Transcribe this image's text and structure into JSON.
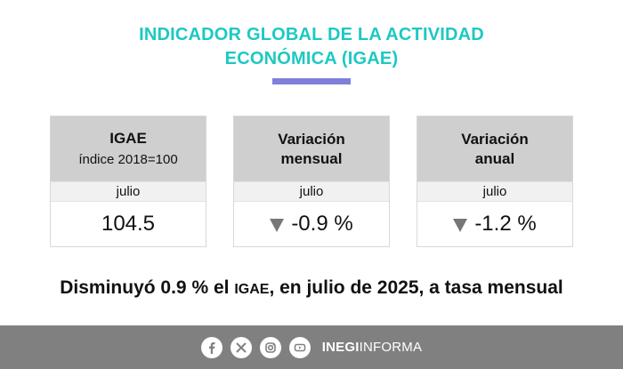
{
  "title": {
    "line1": "INDICADOR GLOBAL DE LA ACTIVIDAD",
    "line2": "ECONÓMICA (IGAE)"
  },
  "cards": [
    {
      "heading": "IGAE",
      "subheading": "índice 2018=100",
      "month": "julio",
      "value": "104.5",
      "trend": "none"
    },
    {
      "heading": "Variación",
      "subheading": "mensual",
      "month": "julio",
      "value": "-0.9 %",
      "trend": "down"
    },
    {
      "heading": "Variación",
      "subheading": "anual",
      "month": "julio",
      "value": "-1.2 %",
      "trend": "down"
    }
  ],
  "summary": {
    "part1": "Disminuyó 0.9 % el ",
    "abbr": "IGAE",
    "part2": ", en julio de 2025, a tasa mensual"
  },
  "footer": {
    "icons": [
      "facebook-icon",
      "x-icon",
      "instagram-icon",
      "youtube-icon"
    ],
    "brand_bold": "INEGI",
    "brand_light": "INFORMA"
  },
  "colors": {
    "title": "#1ec8c4",
    "accent_bar": "#7f80d9",
    "card_header": "#cfcfcf",
    "footer": "#808080",
    "trend_down": "#777777"
  }
}
